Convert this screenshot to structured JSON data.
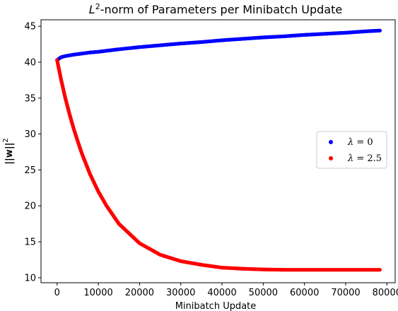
{
  "chart_data": {
    "type": "scatter",
    "title_prefix": "L",
    "title_sup": "2",
    "title_suffix": "-norm of Parameters per Minibatch Update",
    "xlabel": "Minibatch Update",
    "ylabel_main": "||w||",
    "ylabel_sup": "2",
    "xlim": [
      -3900,
      82000
    ],
    "ylim": [
      9.3,
      45.9
    ],
    "xticks": [
      0,
      10000,
      20000,
      30000,
      40000,
      50000,
      60000,
      70000,
      80000
    ],
    "yticks": [
      10,
      15,
      20,
      25,
      30,
      35,
      40,
      45
    ],
    "grid": false,
    "legend_position": "center-right",
    "series": [
      {
        "name": "λ = 0",
        "color": "#0000ff",
        "x": [
          0,
          1000,
          2000,
          4000,
          6000,
          8000,
          10000,
          15000,
          20000,
          25000,
          30000,
          35000,
          40000,
          45000,
          50000,
          55000,
          60000,
          65000,
          70000,
          75000,
          78300
        ],
        "y": [
          40.3,
          40.7,
          40.85,
          41.05,
          41.2,
          41.35,
          41.45,
          41.8,
          42.1,
          42.35,
          42.6,
          42.8,
          43.05,
          43.25,
          43.45,
          43.6,
          43.8,
          43.95,
          44.1,
          44.3,
          44.4
        ]
      },
      {
        "name": "λ = 2.5",
        "color": "#ff0000",
        "x": [
          0,
          1000,
          2000,
          3000,
          4000,
          5000,
          6000,
          8000,
          10000,
          12000,
          15000,
          20000,
          25000,
          30000,
          35000,
          40000,
          45000,
          50000,
          55000,
          60000,
          65000,
          70000,
          75000,
          78300
        ],
        "y": [
          40.3,
          37.5,
          35.0,
          32.8,
          30.8,
          29.0,
          27.3,
          24.4,
          22.0,
          20.0,
          17.5,
          14.8,
          13.2,
          12.3,
          11.8,
          11.4,
          11.25,
          11.15,
          11.1,
          11.1,
          11.1,
          11.1,
          11.1,
          11.1
        ]
      }
    ],
    "legend": [
      {
        "symbol": "λ",
        "eq": " = 0",
        "color": "#0000ff"
      },
      {
        "symbol": "λ",
        "eq": " = 2.5",
        "color": "#ff0000"
      }
    ]
  }
}
